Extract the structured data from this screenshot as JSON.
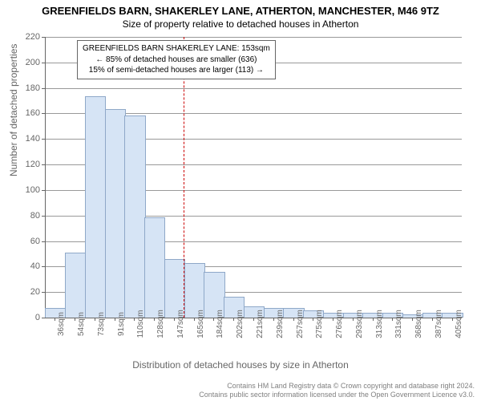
{
  "title_main": "GREENFIELDS BARN, SHAKERLEY LANE, ATHERTON, MANCHESTER, M46 9TZ",
  "title_sub": "Size of property relative to detached houses in Atherton",
  "y_label": "Number of detached properties",
  "x_label": "Distribution of detached houses by size in Atherton",
  "chart": {
    "type": "histogram",
    "ylim": [
      0,
      220
    ],
    "ytick_step": 20,
    "x_categories": [
      "36sqm",
      "54sqm",
      "73sqm",
      "91sqm",
      "110sqm",
      "128sqm",
      "147sqm",
      "165sqm",
      "184sqm",
      "202sqm",
      "221sqm",
      "239sqm",
      "257sqm",
      "275sqm",
      "276sqm",
      "293sqm",
      "313sqm",
      "331sqm",
      "368sqm",
      "387sqm",
      "405sqm"
    ],
    "values": [
      7,
      50,
      173,
      163,
      158,
      78,
      45,
      42,
      35,
      16,
      8,
      7,
      7,
      5,
      3,
      3,
      3,
      3,
      2,
      3,
      3
    ],
    "bar_fill": "#d6e4f5",
    "bar_stroke": "#8fa8c8",
    "grid_color": "#999999",
    "axis_color": "#666666",
    "background": "#ffffff",
    "reference_line_index": 7,
    "reference_line_color": "#cc0000",
    "title_fontsize": 13,
    "subtitle_fontsize": 12,
    "label_fontsize": 12,
    "tick_fontsize": 11
  },
  "info_box": {
    "line1": "GREENFIELDS BARN SHAKERLEY LANE: 153sqm",
    "line2": "← 85% of detached houses are smaller (636)",
    "line3": "15% of semi-detached houses are larger (113) →"
  },
  "footer": {
    "line1": "Contains HM Land Registry data © Crown copyright and database right 2024.",
    "line2": "Contains public sector information licensed under the Open Government Licence v3.0."
  }
}
